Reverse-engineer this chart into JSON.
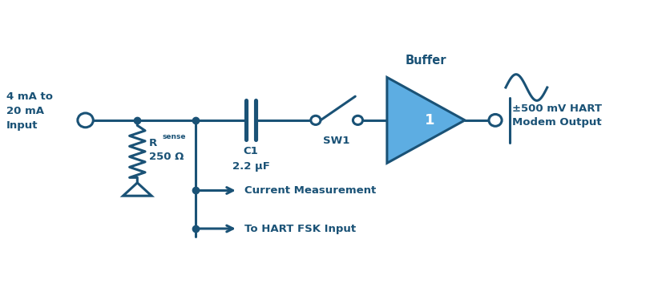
{
  "bg_color": "#ffffff",
  "line_color": "#1a5276",
  "fill_color": "#5dade2",
  "text_color": "#1a5276",
  "figsize": [
    8.12,
    3.74
  ],
  "dpi": 100,
  "labels": {
    "input": "4 mA to\n20 mA\nInput",
    "rsense": "R",
    "rsense_sub": "sense",
    "rsense_val": "250 Ω",
    "c1": "C1",
    "c1_val": "2.2 μF",
    "sw1": "SW1",
    "buffer": "Buffer",
    "buf_num": "1",
    "output": "±500 mV HART\nModem Output",
    "current_meas": "Current Measurement",
    "hart_fsk": "To HART FSK Input"
  }
}
